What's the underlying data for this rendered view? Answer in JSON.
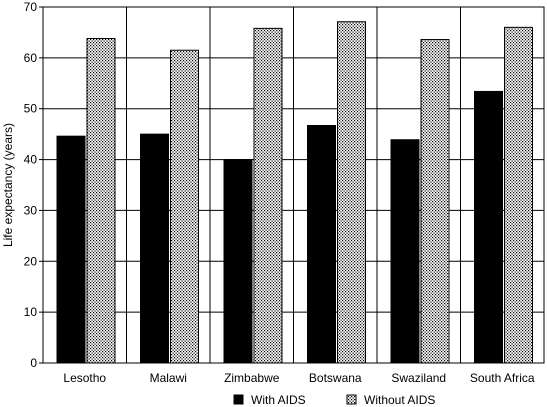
{
  "chart_data": {
    "type": "bar",
    "categories": [
      "Lesotho",
      "Malawi",
      "Zimbabwe",
      "Botswana",
      "Swaziland",
      "South Africa"
    ],
    "series": [
      {
        "name": "With AIDS",
        "values": [
          44.6,
          45.0,
          40.0,
          46.7,
          43.9,
          53.4
        ],
        "color": "#000000",
        "pattern": "solid"
      },
      {
        "name": "Without AIDS",
        "values": [
          63.8,
          61.5,
          65.8,
          67.1,
          63.6,
          66.0
        ],
        "color": "#000000",
        "pattern": "dotted"
      }
    ],
    "ylabel": "Life expectancy (years)",
    "ylim": [
      0,
      70
    ],
    "yticks": [
      0,
      10,
      20,
      30,
      40,
      50,
      60,
      70
    ],
    "grid": "horizontal",
    "category_separators": true,
    "legend_position": "bottom-center"
  }
}
